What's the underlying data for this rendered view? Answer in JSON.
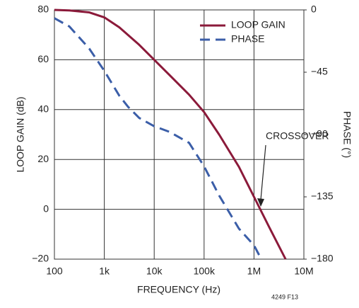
{
  "chart_data": {
    "type": "line",
    "xlabel": "FREQUENCY (Hz)",
    "ylabel": "LOOP GAIN (dB)",
    "y2label": "PHASE (°)",
    "xscale": "log",
    "xlim": [
      100,
      10000000
    ],
    "xticks": [
      100,
      {
        "value": 1000,
        "label": "1k"
      },
      {
        "value": 10000,
        "label": "10k"
      },
      {
        "value": 100000,
        "label": "100k"
      },
      {
        "value": 1000000,
        "label": "1M"
      },
      {
        "value": 10000000,
        "label": "10M"
      }
    ],
    "ylim": [
      -20,
      80
    ],
    "yticks": [
      {
        "value": -20,
        "label": "−20"
      },
      0,
      20,
      40,
      60,
      80
    ],
    "y2lim": [
      -180,
      0
    ],
    "y2ticks": [
      {
        "value": -180,
        "label": "−180"
      },
      {
        "value": -135,
        "label": "−135"
      },
      {
        "value": -90,
        "label": "−90"
      },
      {
        "value": -45,
        "label": "−45"
      },
      0
    ],
    "grid": true,
    "legend": "upper right",
    "series": [
      {
        "name": "LOOP GAIN",
        "color": "#8b1a3a",
        "dash": false,
        "x": [
          100,
          200,
          500,
          1000,
          2000,
          5000,
          10000,
          20000,
          50000,
          100000,
          200000,
          500000,
          1000000,
          2000000,
          4300000
        ],
        "values": [
          80,
          79.8,
          79,
          77,
          73,
          66,
          60,
          54,
          46,
          39,
          30,
          17,
          5,
          -7,
          -20
        ]
      },
      {
        "name": "PHASE",
        "color": "#3b5ea8",
        "dash": true,
        "axis": "y2",
        "x": [
          100,
          200,
          500,
          1000,
          2000,
          3000,
          5000,
          10000,
          20000,
          50000,
          100000,
          200000,
          500000,
          1000000,
          1400000
        ],
        "values": [
          -6,
          -12,
          -28,
          -44,
          -62,
          -70,
          -78,
          -84,
          -88,
          -96,
          -113,
          -134,
          -158,
          -170,
          -180
        ]
      }
    ],
    "annotation": "CROSSOVER",
    "figure_id": "4249 F13"
  }
}
